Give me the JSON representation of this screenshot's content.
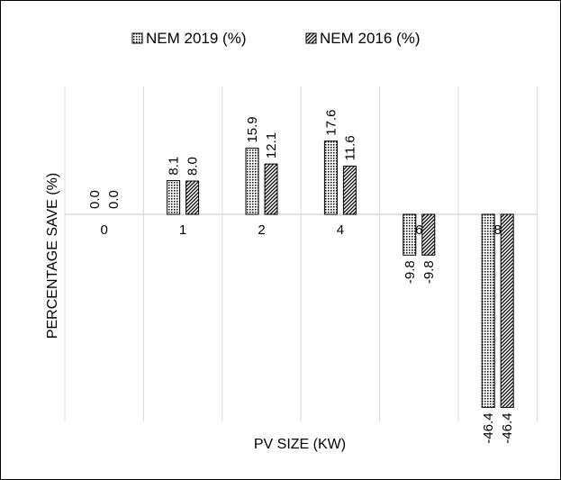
{
  "chart_data": {
    "type": "bar",
    "categories": [
      "0",
      "1",
      "2",
      "4",
      "6",
      "8"
    ],
    "series": [
      {
        "name": "NEM 2019 (%)",
        "values": [
          0.0,
          8.1,
          15.9,
          17.6,
          -9.8,
          -46.4
        ],
        "pattern": "dots"
      },
      {
        "name": "NEM 2016 (%)",
        "values": [
          0.0,
          8.0,
          12.1,
          11.6,
          -9.8,
          -46.4
        ],
        "pattern": "diagonal"
      }
    ],
    "value_labels": [
      [
        "0.0",
        "8.1",
        "15.9",
        "17.6",
        "-9.8",
        "-46.4"
      ],
      [
        "0.0",
        "8.0",
        "12.1",
        "11.6",
        "-9.8",
        "-46.4"
      ]
    ],
    "xlabel": "PV SIZE (KW)",
    "ylabel": "PERCENTAGE SAVE (%)",
    "ylim": [
      -50,
      30
    ],
    "legend_position": "top",
    "gridlines": "vertical category separators",
    "colors": {
      "bar_stroke": "#000000",
      "gridline": "#d9d9d9",
      "text": "#000000"
    }
  }
}
